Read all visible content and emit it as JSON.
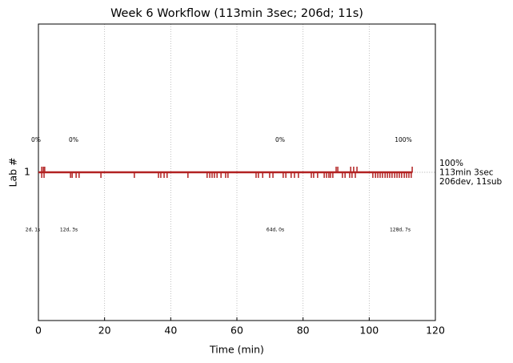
{
  "chart_data": {
    "type": "timeline",
    "title": "Week 6 Workflow (113min 3sec; 206d; 11s)",
    "x_label": "Time (min)",
    "y_label": "Lab #",
    "categories": [
      "1"
    ],
    "color": "#b22222",
    "xlim": [
      0,
      120
    ],
    "xticks": [
      0,
      20,
      40,
      60,
      80,
      100,
      120
    ],
    "grid": true,
    "line_end": 113.05,
    "events_above": [
      1.0,
      1.5,
      1.9,
      90.0,
      90.5,
      94.4,
      95.3,
      96.3,
      113.0
    ],
    "events_below": [
      1.0,
      1.7,
      9.7,
      10.2,
      11.4,
      12.3,
      18.9,
      29.0,
      36.3,
      37.0,
      38.0,
      38.9,
      45.2,
      51.0,
      51.8,
      52.5,
      53.2,
      54.0,
      55.2,
      56.6,
      57.3,
      65.8,
      66.5,
      67.8,
      69.9,
      70.9,
      74.0,
      74.8,
      76.4,
      77.4,
      78.6,
      82.5,
      83.2,
      84.4,
      86.4,
      87.1,
      87.8,
      88.3,
      89.0,
      91.9,
      92.7,
      94.1,
      94.8,
      95.8,
      101.1,
      101.9,
      102.6,
      103.3,
      104.0,
      104.8,
      105.5,
      106.2,
      106.9,
      107.7,
      108.4,
      109.1,
      109.8,
      110.6,
      111.3,
      112.0,
      112.7
    ],
    "percent_labels": [
      "0%",
      "0%",
      "0%",
      "100%"
    ],
    "count_labels": [
      "2d, 1s",
      "12d, 3s",
      "64d, 0s",
      "128d, 7s"
    ],
    "summary": [
      "100%",
      "113min 3sec",
      "206dev, 11sub"
    ]
  }
}
